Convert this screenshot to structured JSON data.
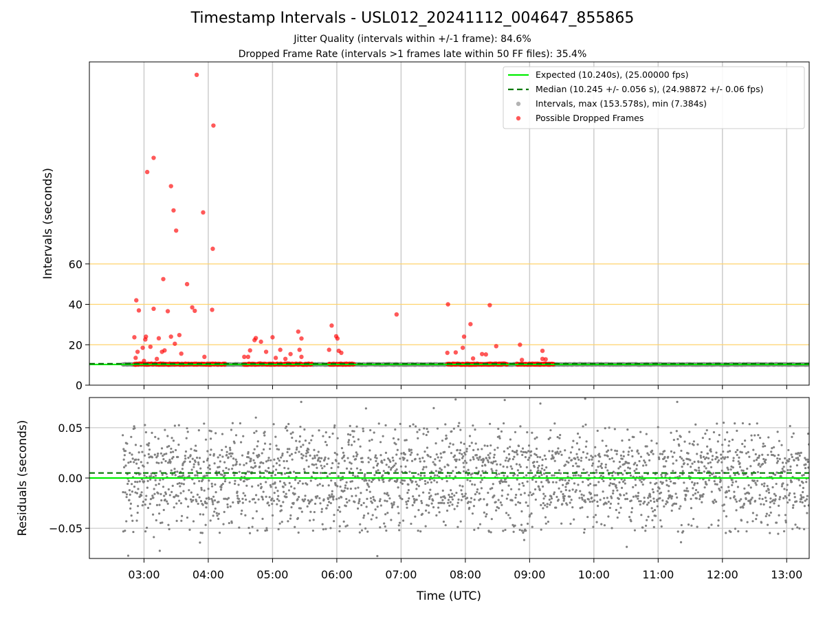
{
  "chart_data": [
    {
      "type": "scatter",
      "title": "Timestamp Intervals - USL012_20241112_004647_855865",
      "subtitle_lines": [
        "Jitter Quality (intervals within +/-1 frame): 84.6%",
        "Dropped Frame Rate (intervals >1 frames late within 50 FF files): 35.4%"
      ],
      "xlabel": "Time (UTC)",
      "ylabel": "Intervals (seconds)",
      "x_ticks": [
        "03:00",
        "04:00",
        "05:00",
        "06:00",
        "07:00",
        "08:00",
        "09:00",
        "10:00",
        "11:00",
        "12:00",
        "13:00"
      ],
      "x_range_hours": [
        2.15,
        13.35
      ],
      "y_ticks": [
        0,
        20,
        40,
        60
      ],
      "ylim": [
        0,
        160
      ],
      "grid": "vertical",
      "reference_lines_y": [
        20,
        40,
        60
      ],
      "expected_interval": 10.24,
      "median_interval": 10.245,
      "legend_position": "top-right",
      "legend": [
        "Expected (10.240s), (25.00000 fps)",
        "Median (10.245 +/- 0.056 s), (24.98872 +/- 0.06 fps)",
        "Intervals, max (153.578s), min (7.384s)",
        "Possible Dropped Frames"
      ],
      "series": [
        {
          "name": "Intervals, max (153.578s), min (7.384s)",
          "color": "#808080",
          "x_range_hours": [
            2.67,
            13.35
          ],
          "typical_value": 10.24
        },
        {
          "name": "Possible Dropped Frames",
          "color": "#ff0000",
          "points": [
            [
              3.82,
              153.6
            ],
            [
              4.08,
              128.5
            ],
            [
              3.15,
              112.5
            ],
            [
              3.05,
              105.5
            ],
            [
              3.42,
              98.5
            ],
            [
              3.46,
              86.5
            ],
            [
              3.92,
              85.5
            ],
            [
              3.5,
              76.5
            ],
            [
              4.07,
              67.5
            ],
            [
              3.3,
              52.5
            ],
            [
              3.67,
              50.0
            ],
            [
              2.88,
              42.0
            ],
            [
              7.73,
              40.0
            ],
            [
              8.38,
              39.6
            ],
            [
              3.75,
              38.5
            ],
            [
              3.15,
              37.8
            ],
            [
              3.79,
              36.8
            ],
            [
              2.92,
              37.0
            ],
            [
              4.06,
              37.3
            ],
            [
              3.37,
              36.6
            ],
            [
              6.93,
              35.0
            ],
            [
              5.92,
              29.5
            ],
            [
              8.08,
              30.2
            ],
            [
              5.4,
              26.5
            ],
            [
              3.55,
              24.8
            ],
            [
              3.03,
              24.0
            ],
            [
              5.99,
              24.2
            ],
            [
              2.85,
              23.7
            ],
            [
              6.01,
              23.1
            ],
            [
              3.42,
              24.0
            ],
            [
              4.74,
              23.3
            ],
            [
              5.45,
              23.1
            ],
            [
              7.98,
              24.0
            ],
            [
              3.23,
              23.2
            ],
            [
              3.02,
              22.6
            ],
            [
              4.72,
              22.3
            ],
            [
              4.82,
              21.5
            ],
            [
              5.0,
              23.7
            ],
            [
              3.48,
              20.5
            ],
            [
              8.85,
              20.0
            ],
            [
              8.48,
              19.3
            ],
            [
              5.12,
              17.5
            ],
            [
              5.42,
              17.5
            ],
            [
              5.88,
              17.5
            ],
            [
              6.03,
              17.0
            ],
            [
              9.2,
              17.0
            ],
            [
              7.96,
              18.5
            ],
            [
              8.26,
              15.4
            ],
            [
              8.32,
              15.2
            ],
            [
              7.85,
              16.2
            ],
            [
              2.9,
              16.5
            ],
            [
              3.28,
              16.5
            ],
            [
              3.32,
              17.2
            ],
            [
              2.98,
              18.5
            ],
            [
              3.1,
              19.0
            ],
            [
              4.65,
              17.2
            ],
            [
              4.62,
              14.0
            ],
            [
              4.9,
              16.5
            ],
            [
              5.28,
              15.4
            ],
            [
              5.45,
              14.0
            ],
            [
              6.07,
              16.0
            ],
            [
              7.72,
              16.0
            ],
            [
              8.12,
              13.2
            ],
            [
              8.88,
              12.5
            ],
            [
              9.2,
              13.0
            ],
            [
              9.25,
              12.8
            ],
            [
              3.94,
              14.0
            ],
            [
              3.58,
              15.6
            ],
            [
              2.87,
              13.5
            ],
            [
              3.0,
              12.0
            ],
            [
              3.2,
              13.0
            ],
            [
              4.56,
              14.0
            ],
            [
              5.05,
              13.5
            ],
            [
              5.2,
              13.0
            ]
          ],
          "dense_band_x_ranges_hours": [
            [
              2.85,
              4.27
            ],
            [
              4.55,
              5.62
            ],
            [
              5.88,
              6.27
            ],
            [
              7.72,
              8.65
            ],
            [
              8.8,
              9.38
            ]
          ],
          "dense_band_value": 10.3
        }
      ]
    },
    {
      "type": "scatter",
      "xlabel": "Time (UTC)",
      "ylabel": "Residuals (seconds)",
      "y_ticks": [
        "0.05",
        "0.00",
        "−0.05"
      ],
      "ylim": [
        -0.08,
        0.08
      ],
      "expected_residual": 0.0,
      "median_residual": 0.005,
      "series": [
        {
          "color": "#808080",
          "x_range_hours": [
            2.67,
            13.35
          ],
          "bands": [
            0.02,
            0.0,
            -0.02
          ],
          "spread": 0.055
        }
      ]
    }
  ],
  "colors": {
    "expected": "#00ee00",
    "median": "#007700",
    "intervals": "#808080",
    "dropped": "#ff0000",
    "reference": "#ffd36b",
    "grid": "#cccccc"
  }
}
